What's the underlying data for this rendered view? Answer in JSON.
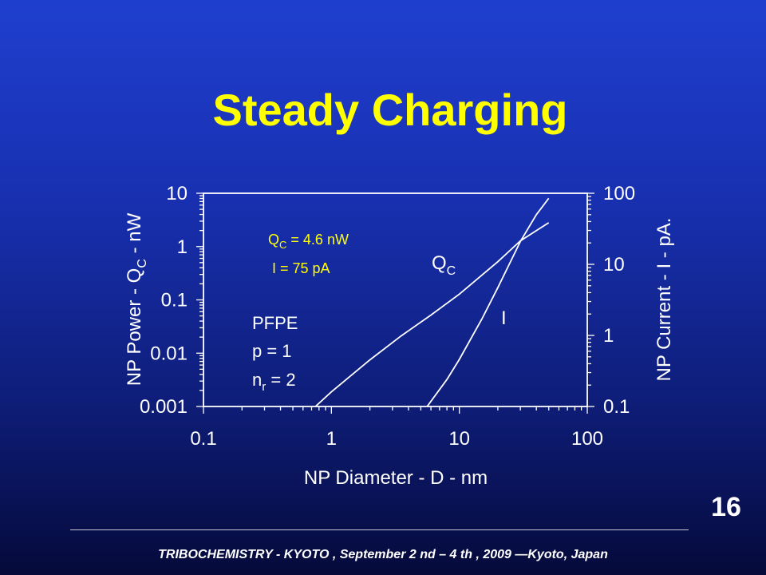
{
  "slide": {
    "title": "Steady Charging",
    "page_number": "16",
    "footer": "TRIBOCHEMISTRY - KYOTO , September 2 nd – 4 th ,  2009 —Kyoto, Japan"
  },
  "chart_data": {
    "type": "line",
    "x_scale": "log",
    "y_scale": "log",
    "xlabel": "NP Diameter - D - nm",
    "xlim": [
      0.1,
      100
    ],
    "x_ticks": [
      "0.1",
      "1",
      "10",
      "100"
    ],
    "ylabel_left": {
      "main": "NP Power - Q",
      "sub": "C",
      "tail": " - nW"
    },
    "ylim_left": [
      0.001,
      10
    ],
    "y_ticks_left": [
      "10",
      "1",
      "0.1",
      "0.01",
      "0.001"
    ],
    "ylabel_right": "NP Current - I - pA.",
    "ylim_right": [
      0.1,
      100
    ],
    "y_ticks_right": [
      "100",
      "10",
      "1",
      "0.1"
    ],
    "series": [
      {
        "name": "Q",
        "name_sub": "C",
        "axis": "left",
        "x": [
          0.75,
          1.0,
          2.0,
          3.5,
          6.0,
          10.0,
          20.0,
          30.0,
          40.0,
          50.0
        ],
        "y": [
          0.001,
          0.00188,
          0.0075,
          0.021,
          0.052,
          0.128,
          0.52,
          1.28,
          2.0,
          2.8
        ]
      },
      {
        "name": "I",
        "axis": "right",
        "x": [
          5.6,
          8.0,
          10.0,
          15.0,
          20.0,
          30.0,
          40.0,
          50.0
        ],
        "y": [
          0.1,
          0.24,
          0.46,
          1.7,
          4.7,
          21.0,
          50.0,
          85.0
        ]
      }
    ],
    "annotations": {
      "qc_value": {
        "main": "Q",
        "sub": "C",
        "tail": " = 4.6 nW"
      },
      "i_value": "I = 75 pA",
      "material": "PFPE",
      "p_param": "p = 1",
      "nr_param": {
        "main": "n",
        "sub": "r",
        "tail": " = 2"
      }
    }
  }
}
